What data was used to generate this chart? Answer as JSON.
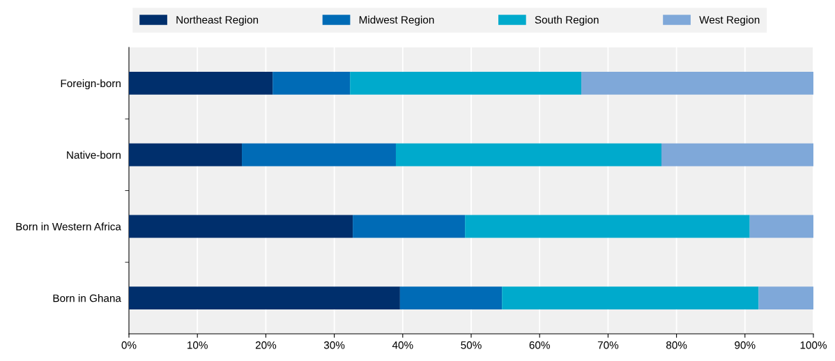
{
  "chart_data": {
    "type": "bar",
    "orientation": "horizontal",
    "stacked": true,
    "categories": [
      "Foreign-born",
      "Native-born",
      "Born in Western Africa",
      "Born in Ghana"
    ],
    "series": [
      {
        "name": "Northeast Region",
        "color": "#002f6c",
        "values": [
          21.0,
          16.5,
          32.7,
          39.6
        ]
      },
      {
        "name": "Midwest Region",
        "color": "#006bb6",
        "values": [
          11.3,
          22.5,
          16.4,
          14.9
        ]
      },
      {
        "name": "South Region",
        "color": "#00aacc",
        "values": [
          33.8,
          38.8,
          41.6,
          37.5
        ]
      },
      {
        "name": "West Region",
        "color": "#7fa8d9",
        "values": [
          33.9,
          22.2,
          9.3,
          8.0
        ]
      }
    ],
    "xlim": [
      0,
      100
    ],
    "xticks": [
      {
        "value": 0,
        "label": "0%"
      },
      {
        "value": 10,
        "label": "10%"
      },
      {
        "value": 20,
        "label": "20%"
      },
      {
        "value": 30,
        "label": "30%"
      },
      {
        "value": 40,
        "label": "40%"
      },
      {
        "value": 50,
        "label": "50%"
      },
      {
        "value": 60,
        "label": "60%"
      },
      {
        "value": 70,
        "label": "70%"
      },
      {
        "value": 80,
        "label": "80%"
      },
      {
        "value": 90,
        "label": "90%"
      },
      {
        "value": 100,
        "label": "100%"
      }
    ],
    "grid": "x",
    "legend": "top"
  }
}
